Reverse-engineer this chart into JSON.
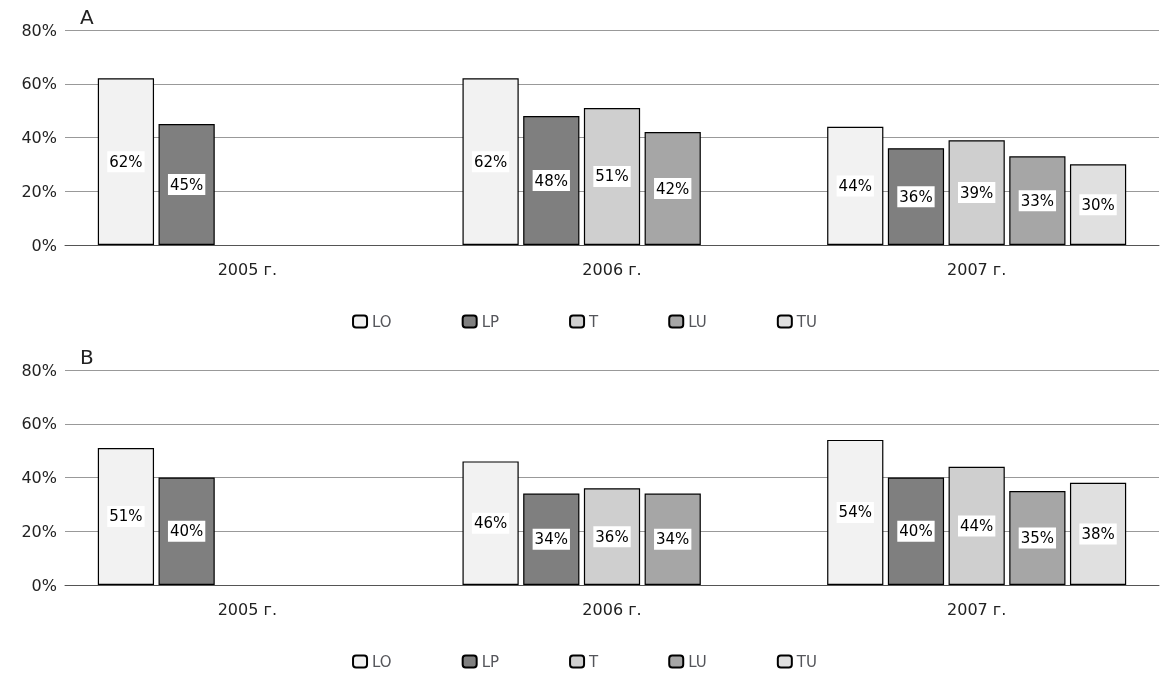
{
  "chart_data": [
    {
      "type": "bar",
      "title": "A",
      "categories": [
        "2005 г.",
        "2006 г.",
        "2007 г."
      ],
      "series": [
        {
          "name": "LO",
          "color": "#f2f2f2",
          "values": [
            62,
            62,
            44
          ]
        },
        {
          "name": "LP",
          "color": "#7f7f7f",
          "values": [
            45,
            48,
            36
          ]
        },
        {
          "name": "T",
          "color": "#cfcfcf",
          "values": [
            null,
            51,
            39
          ]
        },
        {
          "name": "LU",
          "color": "#a6a6a6",
          "values": [
            null,
            42,
            33
          ]
        },
        {
          "name": "TU",
          "color": "#e0e0e0",
          "values": [
            null,
            null,
            30
          ]
        }
      ],
      "ylim": [
        0,
        80
      ],
      "yticks": [
        {
          "value": 0,
          "label": "0%"
        },
        {
          "value": 20,
          "label": "20%"
        },
        {
          "value": 40,
          "label": "40%"
        },
        {
          "value": 60,
          "label": "60%"
        },
        {
          "value": 80,
          "label": "80%"
        }
      ],
      "value_labels": [
        [
          "62%",
          "62%",
          "44%"
        ],
        [
          "45%",
          "48%",
          "36%"
        ],
        [
          null,
          "51%",
          "39%"
        ],
        [
          null,
          "42%",
          "33%"
        ],
        [
          null,
          null,
          "30%"
        ]
      ],
      "grid": "y",
      "legend": "bottom"
    },
    {
      "type": "bar",
      "title": "B",
      "categories": [
        "2005 г.",
        "2006 г.",
        "2007 г."
      ],
      "series": [
        {
          "name": "LO",
          "color": "#f2f2f2",
          "values": [
            51,
            46,
            54
          ]
        },
        {
          "name": "LP",
          "color": "#7f7f7f",
          "values": [
            40,
            34,
            40
          ]
        },
        {
          "name": "T",
          "color": "#cfcfcf",
          "values": [
            null,
            36,
            44
          ]
        },
        {
          "name": "LU",
          "color": "#a6a6a6",
          "values": [
            null,
            34,
            35
          ]
        },
        {
          "name": "TU",
          "color": "#e0e0e0",
          "values": [
            null,
            null,
            38
          ]
        }
      ],
      "ylim": [
        0,
        80
      ],
      "yticks": [
        {
          "value": 0,
          "label": "0%"
        },
        {
          "value": 20,
          "label": "20%"
        },
        {
          "value": 40,
          "label": "40%"
        },
        {
          "value": 60,
          "label": "60%"
        },
        {
          "value": 80,
          "label": "80%"
        }
      ],
      "value_labels": [
        [
          "51%",
          "46%",
          "54%"
        ],
        [
          "40%",
          "34%",
          "40%"
        ],
        [
          null,
          "36%",
          "44%"
        ],
        [
          null,
          "34%",
          "35%"
        ],
        [
          null,
          null,
          "38%"
        ]
      ],
      "grid": "y",
      "legend": "bottom"
    }
  ]
}
